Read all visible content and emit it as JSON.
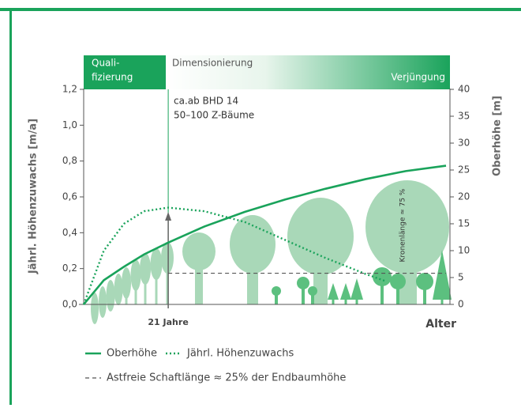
{
  "chart_data": {
    "type": "line",
    "phases": {
      "qualifizierung": [
        "Quali-",
        "fizierung"
      ],
      "dimensionierung": "Dimensionierung",
      "verjuengung": "Verjüngung"
    },
    "annotations": {
      "z_baeume": [
        "ca.ab BHD 14",
        "50–100 Z-Bäume"
      ],
      "krone": "Kronenlänge ≈ 75 %"
    },
    "ylabel": "Jährl. Höhenzuwachs [m/a]",
    "y2label": "Oberhöhe [m]",
    "xlabel": "Alter",
    "xlim": [
      0,
      90
    ],
    "xticks": [
      {
        "value": 21,
        "label": "21 Jahre"
      }
    ],
    "ylim": [
      0,
      1.2
    ],
    "yticks": [
      {
        "value": 0,
        "label": "0,0"
      },
      {
        "value": 0.2,
        "label": "0,2"
      },
      {
        "value": 0.4,
        "label": "0,4"
      },
      {
        "value": 0.6,
        "label": "0,6"
      },
      {
        "value": 0.8,
        "label": "0,8"
      },
      {
        "value": 1.0,
        "label": "1,0"
      },
      {
        "value": 1.2,
        "label": "1,2"
      }
    ],
    "y2lim": [
      0,
      40
    ],
    "y2ticks": [
      0,
      5,
      10,
      15,
      20,
      25,
      30,
      35,
      40
    ],
    "series": [
      {
        "name": "Oberhöhe",
        "color": "#1aa35b",
        "style": "solid",
        "axis": "y2",
        "x": [
          0,
          5,
          10,
          15,
          21,
          30,
          40,
          50,
          60,
          70,
          80,
          90
        ],
        "values": [
          0,
          4.5,
          7,
          9.3,
          11.5,
          14.5,
          17.2,
          19.5,
          21.5,
          23.3,
          24.8,
          25.8
        ]
      },
      {
        "name": "Jährl. Höhenzuwachs",
        "color": "#1aa35b",
        "style": "dotted",
        "axis": "y",
        "x": [
          0,
          5,
          10,
          15,
          21,
          30,
          40,
          50,
          60,
          70,
          75
        ],
        "values": [
          0,
          0.3,
          0.45,
          0.52,
          0.54,
          0.52,
          0.46,
          0.36,
          0.26,
          0.17,
          0.13
        ]
      },
      {
        "name": "Astfreie Schaftlänge ≈ 25% der Endbaumhöhe",
        "color": "#555555",
        "style": "dashed",
        "axis": "y2",
        "x": [
          21,
          90
        ],
        "values": [
          5.8,
          5.8
        ]
      }
    ]
  }
}
